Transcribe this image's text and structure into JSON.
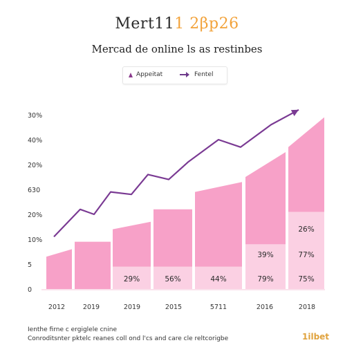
{
  "header": {
    "brand_part1": "Mert11",
    "brand_part2": "1 2βp26",
    "subtitle": "Mercad de online ls as restinbes"
  },
  "legend": {
    "items": [
      {
        "label": "Appeitat"
      },
      {
        "label": "Fentel"
      }
    ]
  },
  "footer": {
    "line1": "Ienthe firne c ergiglele cnine",
    "line2": "Conroditsnter pktelc reanes coll ond l'cs and care cle reltcorigbe",
    "brand": "1ilbet"
  },
  "colors": {
    "bar_dark": "#f7a1c8",
    "bar_light": "#fbd0e3",
    "line": "#7a3a93"
  },
  "chart_data": {
    "type": "bar",
    "ytick_labels": [
      "0",
      "5",
      "10%",
      "20%",
      "630",
      "20%",
      "40%",
      "30%"
    ],
    "xtick_labels": [
      "2012",
      "2019",
      "2019",
      "2015",
      "5711",
      "2016",
      "2018"
    ],
    "bars": [
      {
        "bottom_level": 1.3,
        "top_level": 1.6,
        "lower_segment": null,
        "label": ""
      },
      {
        "bottom_level": 1.9,
        "top_level": 1.9,
        "lower_segment": null,
        "label": ""
      },
      {
        "bottom_level": 2.4,
        "top_level": 2.7,
        "lower_segment": 0.9,
        "label": "29%"
      },
      {
        "bottom_level": 3.2,
        "top_level": 3.2,
        "lower_segment": 0.9,
        "label": "56%"
      },
      {
        "bottom_level": 3.9,
        "top_level": 4.3,
        "lower_segment": 0.9,
        "label": "44%"
      },
      {
        "bottom_level": 4.5,
        "top_level": 5.5,
        "lower_segment": 1.8,
        "label": "79%",
        "mid_label": "39%"
      },
      {
        "bottom_level": 5.7,
        "top_level": 6.9,
        "lower_segment": 3.1,
        "label": "75%",
        "mid_label": "77%",
        "upper_label": "26%"
      }
    ],
    "line_series": {
      "name": "Fentel",
      "values": [
        2.1,
        3.2,
        3.0,
        3.9,
        3.8,
        4.6,
        4.4,
        5.1,
        6.0,
        5.7,
        6.6,
        7.2
      ]
    }
  }
}
